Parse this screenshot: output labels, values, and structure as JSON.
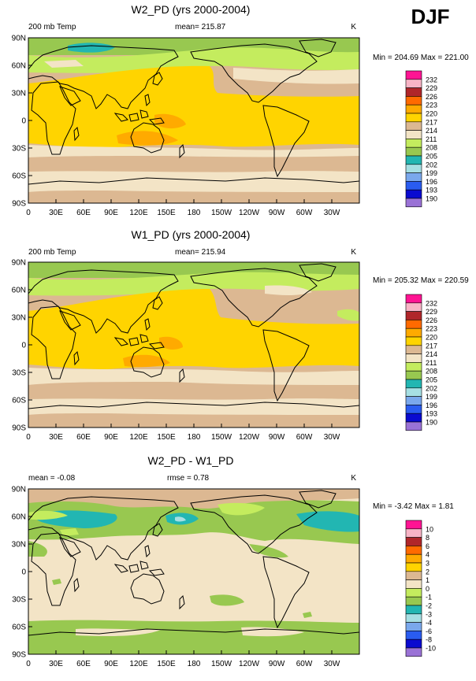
{
  "season": "DJF",
  "unit": "K",
  "colors": {
    "t190": "#9a72d6",
    "t193": "#0a0ad0",
    "t196": "#2a5cf0",
    "t199": "#7aa8ec",
    "t202": "#a6dfe3",
    "t205": "#22b6b2",
    "t208": "#98c850",
    "t211": "#c4ec5e",
    "t214": "#f3e4c6",
    "t217": "#dcb892",
    "t220": "#ffd400",
    "t223": "#ffaa00",
    "t226": "#ff6a00",
    "t229": "#b0262a",
    "t232": "#f8b4c6",
    "t235": "#ff1493",
    "coast": "#000000",
    "border": "#000000"
  },
  "axes": {
    "lon_labels": [
      "0",
      "30E",
      "60E",
      "90E",
      "120E",
      "150E",
      "180",
      "150W",
      "120W",
      "90W",
      "60W",
      "30W"
    ],
    "lat_labels": [
      "90N",
      "60N",
      "30N",
      "0",
      "30S",
      "60S",
      "90S"
    ]
  },
  "panels": [
    {
      "title": "W2_PD (yrs 2000-2004)",
      "left_label": "200 mb Temp",
      "mean_label": "mean= 215.87",
      "unit": "K",
      "minmax": "Min = 204.69 Max = 221.00",
      "legend": [
        "232",
        "229",
        "226",
        "223",
        "220",
        "217",
        "214",
        "211",
        "208",
        "205",
        "202",
        "199",
        "196",
        "193",
        "190"
      ]
    },
    {
      "title": "W1_PD (yrs 2000-2004)",
      "left_label": "200 mb Temp",
      "mean_label": "mean= 215.94",
      "unit": "K",
      "minmax": "Min = 205.32 Max = 220.59",
      "legend": [
        "232",
        "229",
        "226",
        "223",
        "220",
        "217",
        "214",
        "211",
        "208",
        "205",
        "202",
        "199",
        "196",
        "193",
        "190"
      ]
    },
    {
      "title": "W2_PD - W1_PD",
      "left_label": "mean =  -0.08",
      "mean_label": "rmse =   0.78",
      "unit": "K",
      "minmax": "Min =  -3.42 Max =   1.81",
      "legend": [
        "10",
        "8",
        "6",
        "4",
        "3",
        "2",
        "1",
        "0",
        "-1",
        "-2",
        "-3",
        "-4",
        "-6",
        "-8",
        "-10"
      ]
    }
  ]
}
